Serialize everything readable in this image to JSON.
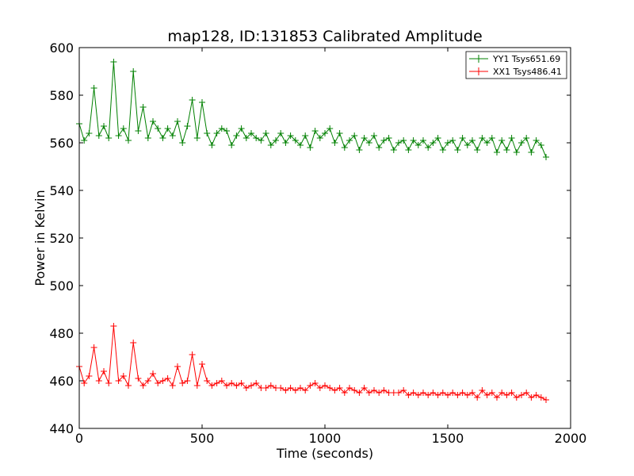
{
  "chart_data": {
    "type": "line",
    "title": "map128, ID:131853 Calibrated Amplitude",
    "xlabel": "Time (seconds)",
    "ylabel": "Power in Kelvin",
    "xlim": [
      0,
      2000
    ],
    "ylim": [
      440,
      600
    ],
    "xticks": [
      "0",
      "500",
      "1000",
      "1500",
      "2000"
    ],
    "yticks": [
      "440",
      "460",
      "480",
      "500",
      "520",
      "540",
      "560",
      "580",
      "600"
    ],
    "grid": false,
    "legend_position": "top-right",
    "marker": "plus",
    "series": [
      {
        "name": "YY1 Tsys651.69",
        "color": "#008000",
        "x": [
          0,
          20,
          40,
          60,
          80,
          100,
          120,
          140,
          160,
          180,
          200,
          220,
          240,
          260,
          280,
          300,
          320,
          340,
          360,
          380,
          400,
          420,
          440,
          460,
          480,
          500,
          520,
          540,
          560,
          580,
          600,
          620,
          640,
          660,
          680,
          700,
          720,
          740,
          760,
          780,
          800,
          820,
          840,
          860,
          880,
          900,
          920,
          940,
          960,
          980,
          1000,
          1020,
          1040,
          1060,
          1080,
          1100,
          1120,
          1140,
          1160,
          1180,
          1200,
          1220,
          1240,
          1260,
          1280,
          1300,
          1320,
          1340,
          1360,
          1380,
          1400,
          1420,
          1440,
          1460,
          1480,
          1500,
          1520,
          1540,
          1560,
          1580,
          1600,
          1620,
          1640,
          1660,
          1680,
          1700,
          1720,
          1740,
          1760,
          1780,
          1800,
          1820,
          1840,
          1860,
          1880,
          1900
        ],
        "y": [
          568,
          561,
          564,
          583,
          563,
          567,
          562,
          594,
          563,
          566,
          561,
          590,
          565,
          575,
          562,
          569,
          566,
          562,
          566,
          563,
          569,
          560,
          567,
          578,
          562,
          577,
          564,
          559,
          564,
          566,
          565,
          559,
          563,
          566,
          562,
          564,
          562,
          561,
          564,
          559,
          561,
          564,
          560,
          563,
          561,
          559,
          563,
          558,
          565,
          562,
          564,
          566,
          560,
          564,
          558,
          561,
          563,
          557,
          562,
          560,
          563,
          558,
          561,
          562,
          557,
          560,
          561,
          557,
          561,
          559,
          561,
          558,
          560,
          562,
          557,
          560,
          561,
          557,
          562,
          559,
          561,
          557,
          562,
          560,
          562,
          556,
          561,
          557,
          562,
          556,
          560,
          562,
          556,
          561,
          559,
          554
        ]
      },
      {
        "name": "XX1 Tsys486.41",
        "color": "#ff0000",
        "x": [
          0,
          20,
          40,
          60,
          80,
          100,
          120,
          140,
          160,
          180,
          200,
          220,
          240,
          260,
          280,
          300,
          320,
          340,
          360,
          380,
          400,
          420,
          440,
          460,
          480,
          500,
          520,
          540,
          560,
          580,
          600,
          620,
          640,
          660,
          680,
          700,
          720,
          740,
          760,
          780,
          800,
          820,
          840,
          860,
          880,
          900,
          920,
          940,
          960,
          980,
          1000,
          1020,
          1040,
          1060,
          1080,
          1100,
          1120,
          1140,
          1160,
          1180,
          1200,
          1220,
          1240,
          1260,
          1280,
          1300,
          1320,
          1340,
          1360,
          1380,
          1400,
          1420,
          1440,
          1460,
          1480,
          1500,
          1520,
          1540,
          1560,
          1580,
          1600,
          1620,
          1640,
          1660,
          1680,
          1700,
          1720,
          1740,
          1760,
          1780,
          1800,
          1820,
          1840,
          1860,
          1880,
          1900
        ],
        "y": [
          466,
          459,
          462,
          474,
          460,
          464,
          459,
          483,
          460,
          462,
          458,
          476,
          461,
          458,
          460,
          463,
          459,
          460,
          461,
          458,
          466,
          459,
          460,
          471,
          458,
          467,
          460,
          458,
          459,
          460,
          458,
          459,
          458,
          459,
          457,
          458,
          459,
          457,
          457,
          458,
          457,
          457,
          456,
          457,
          456,
          457,
          456,
          458,
          459,
          457,
          458,
          457,
          456,
          457,
          455,
          457,
          456,
          455,
          457,
          455,
          456,
          455,
          456,
          455,
          455,
          455,
          456,
          454,
          455,
          454,
          455,
          454,
          455,
          454,
          455,
          454,
          455,
          454,
          455,
          454,
          455,
          453,
          456,
          454,
          455,
          453,
          455,
          454,
          455,
          453,
          454,
          455,
          453,
          454,
          453,
          452
        ]
      }
    ]
  }
}
